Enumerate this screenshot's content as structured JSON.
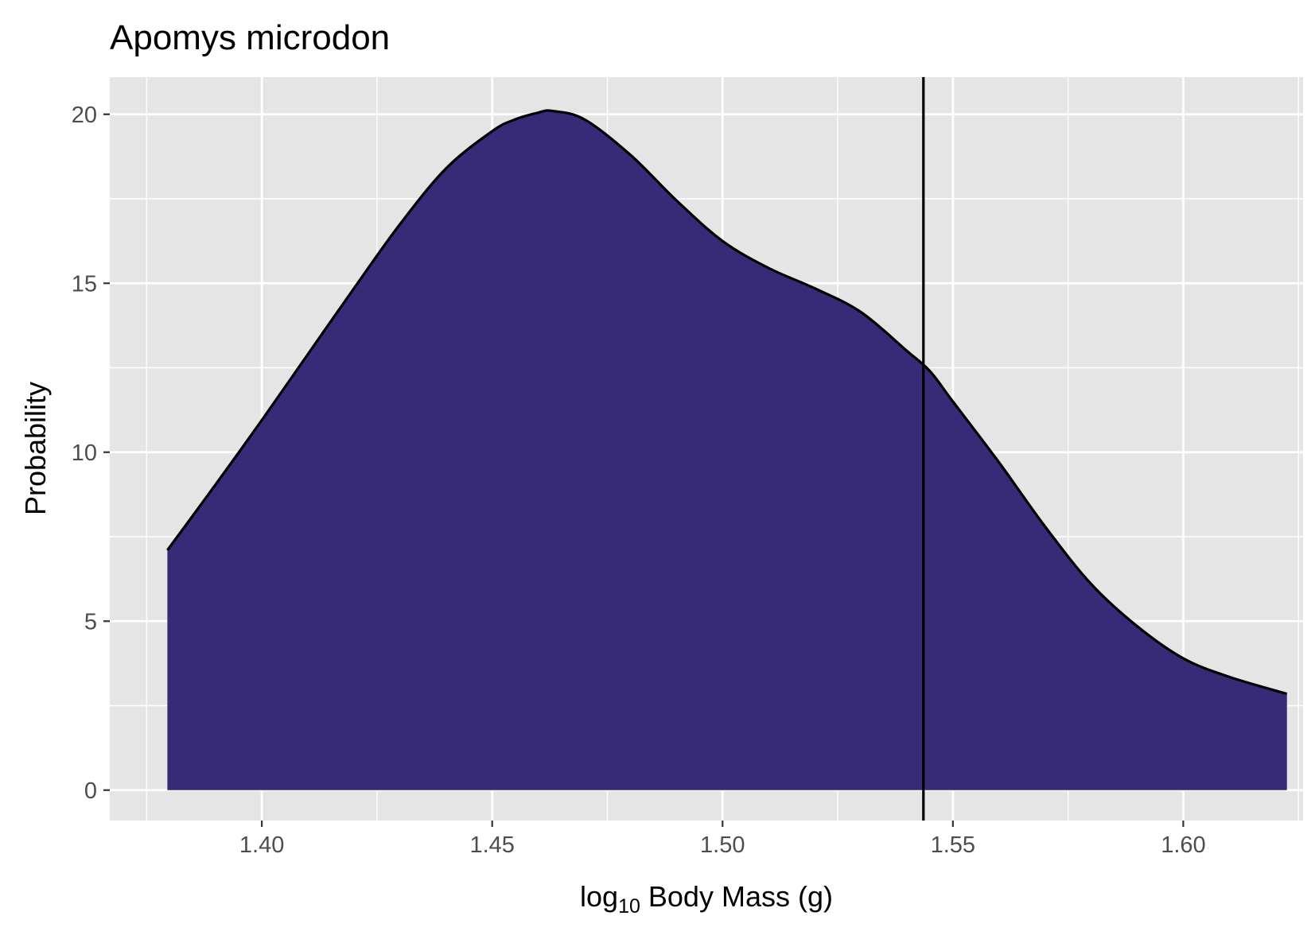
{
  "chart_data": {
    "type": "area",
    "title": "Apomys microdon",
    "xlabel": {
      "prefix": "log",
      "subscript": "10",
      "suffix": " Body Mass (g)"
    },
    "ylabel": "Probability",
    "xlim": [
      1.367,
      1.626
    ],
    "ylim": [
      -0.9,
      21.1
    ],
    "x_ticks": [
      {
        "value": 1.4,
        "label": "1.40"
      },
      {
        "value": 1.45,
        "label": "1.45"
      },
      {
        "value": 1.5,
        "label": "1.50"
      },
      {
        "value": 1.55,
        "label": "1.55"
      },
      {
        "value": 1.6,
        "label": "1.60"
      }
    ],
    "y_ticks": [
      {
        "value": 0,
        "label": "0"
      },
      {
        "value": 5,
        "label": "5"
      },
      {
        "value": 10,
        "label": "10"
      },
      {
        "value": 15,
        "label": "15"
      },
      {
        "value": 20,
        "label": "20"
      }
    ],
    "series": [
      {
        "fill": "#372a77",
        "stroke": "#000000",
        "x": [
          1.3795,
          1.39,
          1.4,
          1.41,
          1.42,
          1.43,
          1.44,
          1.45,
          1.455,
          1.46,
          1.463,
          1.47,
          1.48,
          1.49,
          1.5,
          1.51,
          1.52,
          1.53,
          1.54,
          1.545,
          1.55,
          1.56,
          1.57,
          1.58,
          1.59,
          1.6,
          1.61,
          1.6225
        ],
        "y": [
          7.1,
          9.05,
          10.95,
          12.9,
          14.85,
          16.75,
          18.4,
          19.5,
          19.85,
          20.05,
          20.1,
          19.85,
          18.8,
          17.45,
          16.25,
          15.45,
          14.85,
          14.15,
          13.0,
          12.4,
          11.5,
          9.7,
          7.8,
          6.1,
          4.85,
          3.9,
          3.35,
          2.85
        ]
      }
    ],
    "vline": {
      "x": 1.5436,
      "color": "#000000"
    },
    "grid": true,
    "panel_background": "#e5e5e5",
    "grid_color": "#ffffff",
    "legend": "none"
  }
}
